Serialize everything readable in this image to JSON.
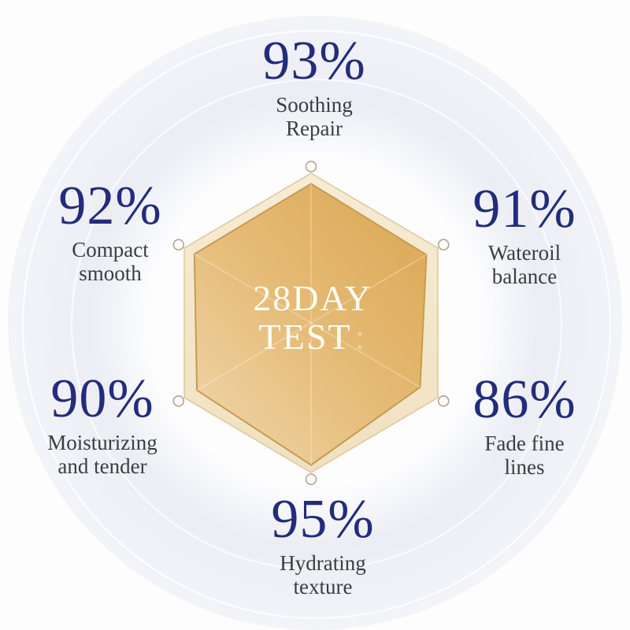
{
  "center_label": {
    "line1": "28DAY",
    "line2": "TEST",
    "ghost_suffix": ":"
  },
  "stats": [
    {
      "value": "93%",
      "label_line1": "Soothing",
      "label_line2": "Repair",
      "position": "top"
    },
    {
      "value": "91%",
      "label_line1": "Wateroil",
      "label_line2": "balance",
      "position": "upper-right"
    },
    {
      "value": "86%",
      "label_line1": "Fade fine",
      "label_line2": "lines",
      "position": "lower-right"
    },
    {
      "value": "95%",
      "label_line1": "Hydrating",
      "label_line2": "texture",
      "position": "bottom"
    },
    {
      "value": "90%",
      "label_line1": "Moisturizing",
      "label_line2": "and tender",
      "position": "lower-left"
    },
    {
      "value": "92%",
      "label_line1": "Compact",
      "label_line2": "smooth",
      "position": "upper-left"
    }
  ],
  "colors": {
    "percent_navy": "#232c7c",
    "label_gray": "#3d3d3f",
    "hexagon_outer_fill": "#f4e8cc",
    "hexagon_outer_stroke": "#dcc79a",
    "polygon_gold_dark": "#dcaa58",
    "polygon_gold_light": "#eed2a3",
    "polygon_stroke": "#c89a52",
    "center_text": "#fdfcf8"
  },
  "chart_data": {
    "type": "radar",
    "title": "28DAY TEST",
    "categories": [
      "Soothing Repair",
      "Wateroil balance",
      "Fade fine lines",
      "Hydrating texture",
      "Moisturizing and tender",
      "Compact smooth"
    ],
    "values": [
      93,
      91,
      86,
      95,
      90,
      92
    ],
    "value_unit": "%",
    "axis_range": [
      0,
      100
    ],
    "layout": "hexagonal radar, 6 axes clockwise from top; outer cream hexagon = 100% grid, gold polygon = data, open circle markers at 100% vertices",
    "grid": false,
    "legend": false
  }
}
